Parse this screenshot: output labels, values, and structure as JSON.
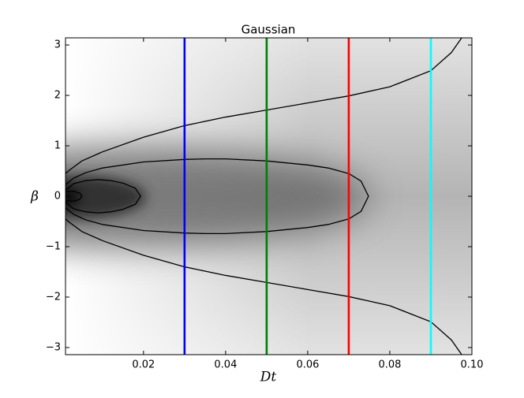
{
  "chart_data": {
    "type": "contour",
    "title": "Gaussian",
    "x_label": "Dt",
    "y_label": "β",
    "xlim": [
      0.001,
      0.1
    ],
    "ylim": [
      -3.1416,
      3.1416
    ],
    "xticks": [
      0.02,
      0.04,
      0.06,
      0.08,
      {
        "value": 0.1,
        "label": "0.10"
      }
    ],
    "yticks": [
      {
        "value": -3,
        "label": "−3"
      },
      {
        "value": -2,
        "label": "−2"
      },
      {
        "value": -1,
        "label": "−1"
      },
      0,
      1,
      2,
      3
    ],
    "vlines": [
      {
        "x": 0.03,
        "color": "#0000ff"
      },
      {
        "x": 0.05,
        "color": "#008000"
      },
      {
        "x": 0.07,
        "color": "#ff0000"
      },
      {
        "x": 0.09,
        "color": "#00ffff"
      }
    ],
    "contour_color": "#000000",
    "contours": [
      {
        "x": [
          0.001,
          0.002,
          0.005,
          0.01,
          0.02,
          0.03,
          0.04,
          0.05,
          0.06,
          0.07,
          0.08,
          0.09,
          0.095,
          0.0975
        ],
        "y": [
          0.45,
          0.52,
          0.7,
          0.88,
          1.17,
          1.4,
          1.57,
          1.71,
          1.85,
          1.99,
          2.17,
          2.49,
          2.85,
          3.14
        ]
      },
      {
        "x": [
          0.001,
          0.002,
          0.005,
          0.01,
          0.02,
          0.03,
          0.04,
          0.05,
          0.06,
          0.07,
          0.08,
          0.09,
          0.095,
          0.0975
        ],
        "y": [
          -0.45,
          -0.52,
          -0.7,
          -0.88,
          -1.17,
          -1.4,
          -1.57,
          -1.71,
          -1.85,
          -1.99,
          -2.17,
          -2.49,
          -2.85,
          -3.14
        ]
      },
      {
        "x": [
          0.001,
          0.003,
          0.006,
          0.01,
          0.02,
          0.03,
          0.035,
          0.04,
          0.05,
          0.06,
          0.065,
          0.07,
          0.073,
          0.0748,
          0.073,
          0.07,
          0.065,
          0.06,
          0.05,
          0.04,
          0.035,
          0.03,
          0.02,
          0.01,
          0.006,
          0.003,
          0.001
        ],
        "y": [
          0.23,
          0.36,
          0.47,
          0.56,
          0.68,
          0.73,
          0.74,
          0.74,
          0.7,
          0.62,
          0.56,
          0.45,
          0.3,
          0,
          -0.3,
          -0.45,
          -0.56,
          -0.62,
          -0.7,
          -0.74,
          -0.74,
          -0.73,
          -0.68,
          -0.56,
          -0.47,
          -0.36,
          -0.23
        ]
      },
      {
        "x": [
          0.001,
          0.003,
          0.006,
          0.009,
          0.012,
          0.015,
          0.018,
          0.0193,
          0.018,
          0.015,
          0.012,
          0.009,
          0.006,
          0.003,
          0.001
        ],
        "y": [
          0.12,
          0.25,
          0.31,
          0.33,
          0.31,
          0.26,
          0.16,
          0,
          -0.16,
          -0.26,
          -0.31,
          -0.33,
          -0.31,
          -0.25,
          -0.12
        ]
      },
      {
        "x": [
          0.001,
          0.003,
          0.0045,
          0.005,
          0.0045,
          0.003,
          0.001
        ],
        "y": [
          0.09,
          0.1,
          0.06,
          0,
          -0.06,
          -0.1,
          -0.09
        ]
      }
    ]
  }
}
